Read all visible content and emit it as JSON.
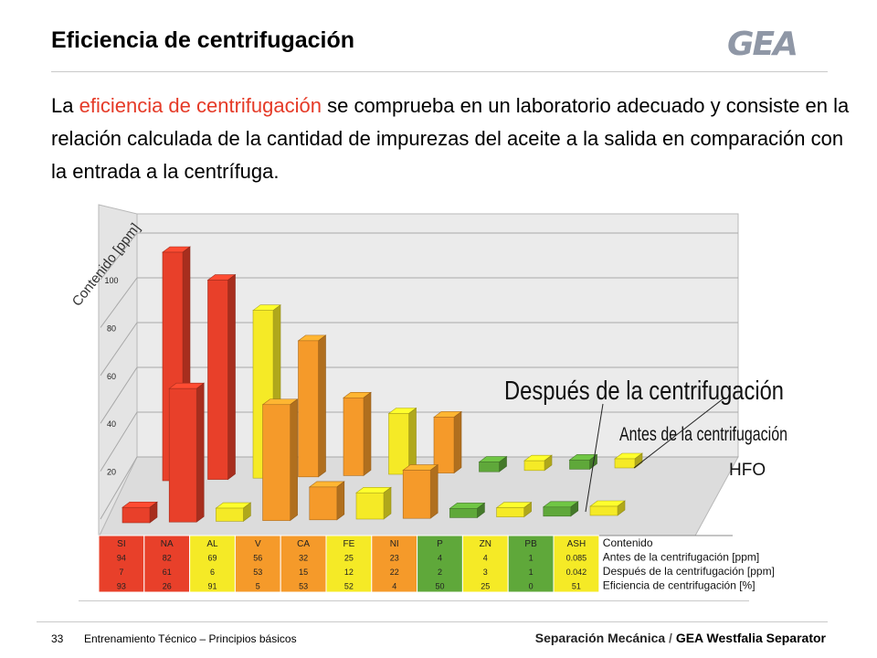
{
  "header": {
    "title": "Eficiencia de centrifugación",
    "logo": "GEA"
  },
  "intro": {
    "part1": "La ",
    "highlight": "eficiencia de centrifugación",
    "part2": " se comprueba en un laboratorio adecuado y consiste en la relación calculada de la cantidad de impurezas del aceite a la salida en comparación con la entrada a la centrífuga."
  },
  "colors": {
    "highlight": "#e53a27",
    "red": "#e8402a",
    "orange": "#f59a2a",
    "yellow": "#f5ea26",
    "green": "#5fa83a"
  },
  "chart_data": {
    "type": "bar",
    "ylabel": "Contenido [ppm]",
    "y_ticks": [
      20,
      40,
      60,
      80,
      100
    ],
    "categories": [
      "SI",
      "NA",
      "AL",
      "V",
      "CA",
      "FE",
      "NI",
      "P",
      "ZN",
      "PB",
      "ASH"
    ],
    "series": [
      {
        "name": "Antes de la centrifugación [ppm]",
        "values": [
          "94",
          "82",
          "69",
          "56",
          "32",
          "25",
          "23",
          "4",
          "4",
          "1",
          "0.085"
        ]
      },
      {
        "name": "Después de la centrifugación [ppm]",
        "values": [
          "7",
          "61",
          "6",
          "53",
          "15",
          "12",
          "22",
          "2",
          "3",
          "1",
          "0.042"
        ]
      },
      {
        "name": "Eficiencia de centrifugación [%]",
        "values": [
          "93",
          "26",
          "91",
          "5",
          "53",
          "52",
          "4",
          "50",
          "25",
          "0",
          "51"
        ]
      }
    ],
    "table_header": "Contenido",
    "callouts": [
      "Después de la centrifugación",
      "Antes de la centrifugación"
    ],
    "annotation": "HFO"
  },
  "footer": {
    "page": "33",
    "left": "Entrenamiento Técnico – Principios básicos",
    "right_part1": "Separación Mecánica",
    "right_sep": " / ",
    "right_part2": "GEA Westfalia Separator"
  }
}
